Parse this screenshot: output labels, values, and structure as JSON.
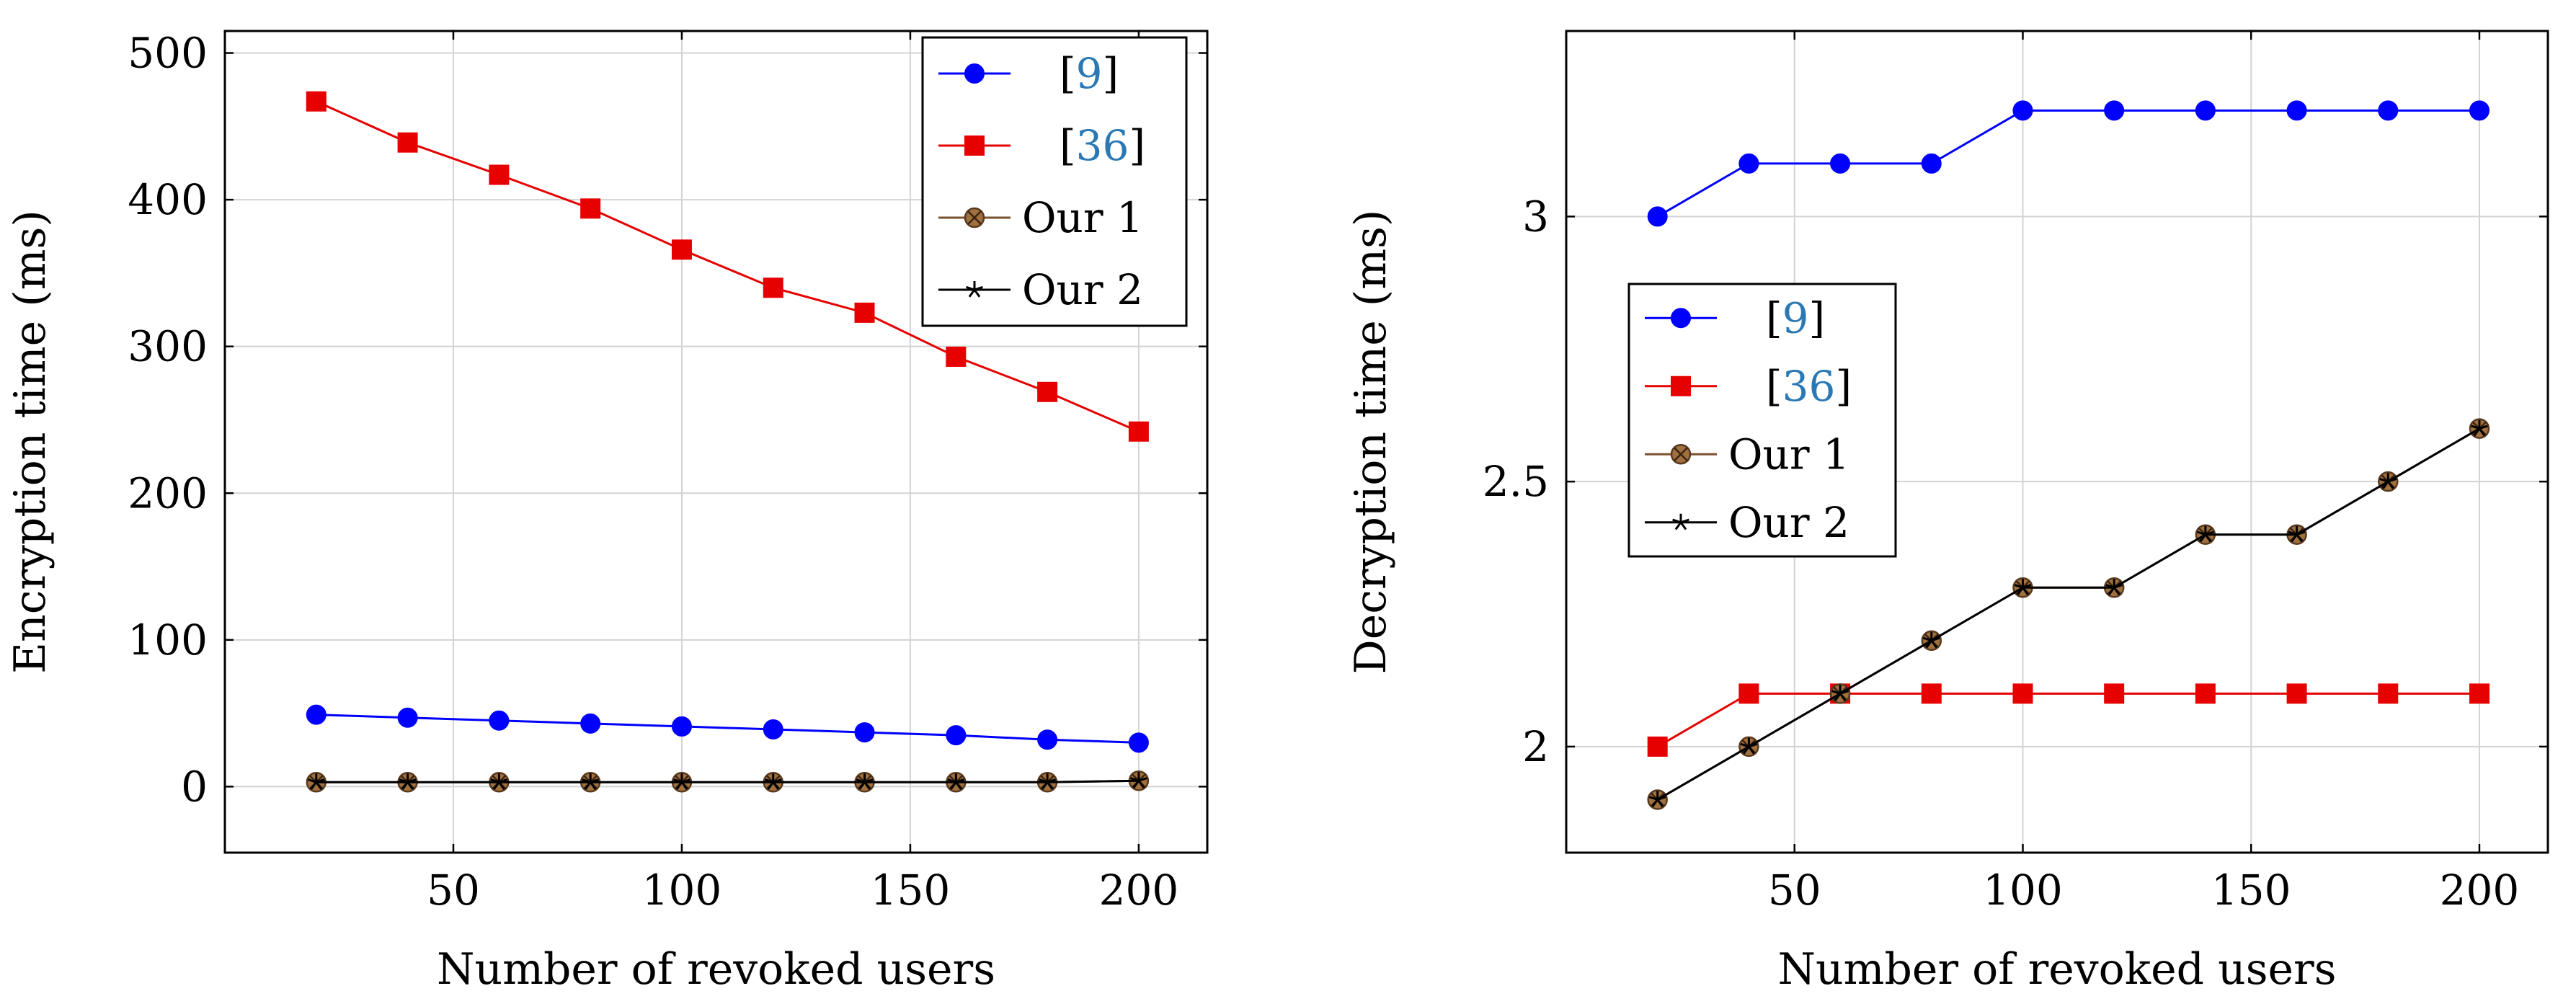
{
  "chart_data": [
    {
      "type": "line",
      "xlabel": "Number of revoked users",
      "ylabel": "Encryption time (ms)",
      "xlim": [
        0,
        215
      ],
      "ylim": [
        -45,
        515
      ],
      "xticks": [
        50,
        100,
        150,
        200
      ],
      "yticks": [
        0,
        100,
        200,
        300,
        400,
        500
      ],
      "grid": true,
      "legend_position": "top-right",
      "x": [
        20,
        40,
        60,
        80,
        100,
        120,
        140,
        160,
        180,
        200
      ],
      "series": [
        {
          "name_prefix": "[",
          "name_ref": "9",
          "name_suffix": "]",
          "color": "#0000ff",
          "marker": "circle",
          "values": [
            49,
            47,
            45,
            43,
            41,
            39,
            37,
            35,
            32,
            30
          ]
        },
        {
          "name_prefix": "[",
          "name_ref": "36",
          "name_suffix": "]",
          "color": "#e60000",
          "marker": "square",
          "values": [
            467,
            439,
            417,
            394,
            366,
            340,
            323,
            293,
            269,
            242
          ]
        },
        {
          "name_prefix": "",
          "name_ref": "",
          "name_suffix": "Our 1",
          "color": "#7a5230",
          "marker": "otimes",
          "values": [
            3,
            3,
            3,
            3,
            3,
            3,
            3,
            3,
            3,
            4
          ]
        },
        {
          "name_prefix": "",
          "name_ref": "",
          "name_suffix": "Our 2",
          "color": "#000000",
          "marker": "star",
          "values": [
            3,
            3,
            3,
            3,
            3,
            3,
            3,
            3,
            3,
            4
          ]
        }
      ]
    },
    {
      "type": "line",
      "xlabel": "Number of revoked users",
      "ylabel": "Decryption time (ms)",
      "xlim": [
        0,
        215
      ],
      "ylim": [
        1.8,
        3.35
      ],
      "xticks": [
        50,
        100,
        150,
        200
      ],
      "yticks": [
        2,
        2.5,
        3
      ],
      "grid": true,
      "legend_position": "center-left",
      "x": [
        20,
        40,
        60,
        80,
        100,
        120,
        140,
        160,
        180,
        200
      ],
      "series": [
        {
          "name_prefix": "[",
          "name_ref": "9",
          "name_suffix": "]",
          "color": "#0000ff",
          "marker": "circle",
          "values": [
            3.0,
            3.1,
            3.1,
            3.1,
            3.2,
            3.2,
            3.2,
            3.2,
            3.2,
            3.2
          ]
        },
        {
          "name_prefix": "[",
          "name_ref": "36",
          "name_suffix": "]",
          "color": "#e60000",
          "marker": "square",
          "values": [
            2.0,
            2.1,
            2.1,
            2.1,
            2.1,
            2.1,
            2.1,
            2.1,
            2.1,
            2.1
          ]
        },
        {
          "name_prefix": "",
          "name_ref": "",
          "name_suffix": "Our 1",
          "color": "#7a5230",
          "marker": "otimes",
          "values": [
            1.9,
            2.0,
            2.1,
            2.2,
            2.3,
            2.3,
            2.4,
            2.4,
            2.5,
            2.6
          ]
        },
        {
          "name_prefix": "",
          "name_ref": "",
          "name_suffix": "Our 2",
          "color": "#000000",
          "marker": "star",
          "values": [
            1.9,
            2.0,
            2.1,
            2.2,
            2.3,
            2.3,
            2.4,
            2.4,
            2.5,
            2.6
          ]
        }
      ]
    }
  ],
  "colors": {
    "citation": "#2a78b4",
    "grid": "#d3d3d3",
    "axis": "#000000"
  }
}
